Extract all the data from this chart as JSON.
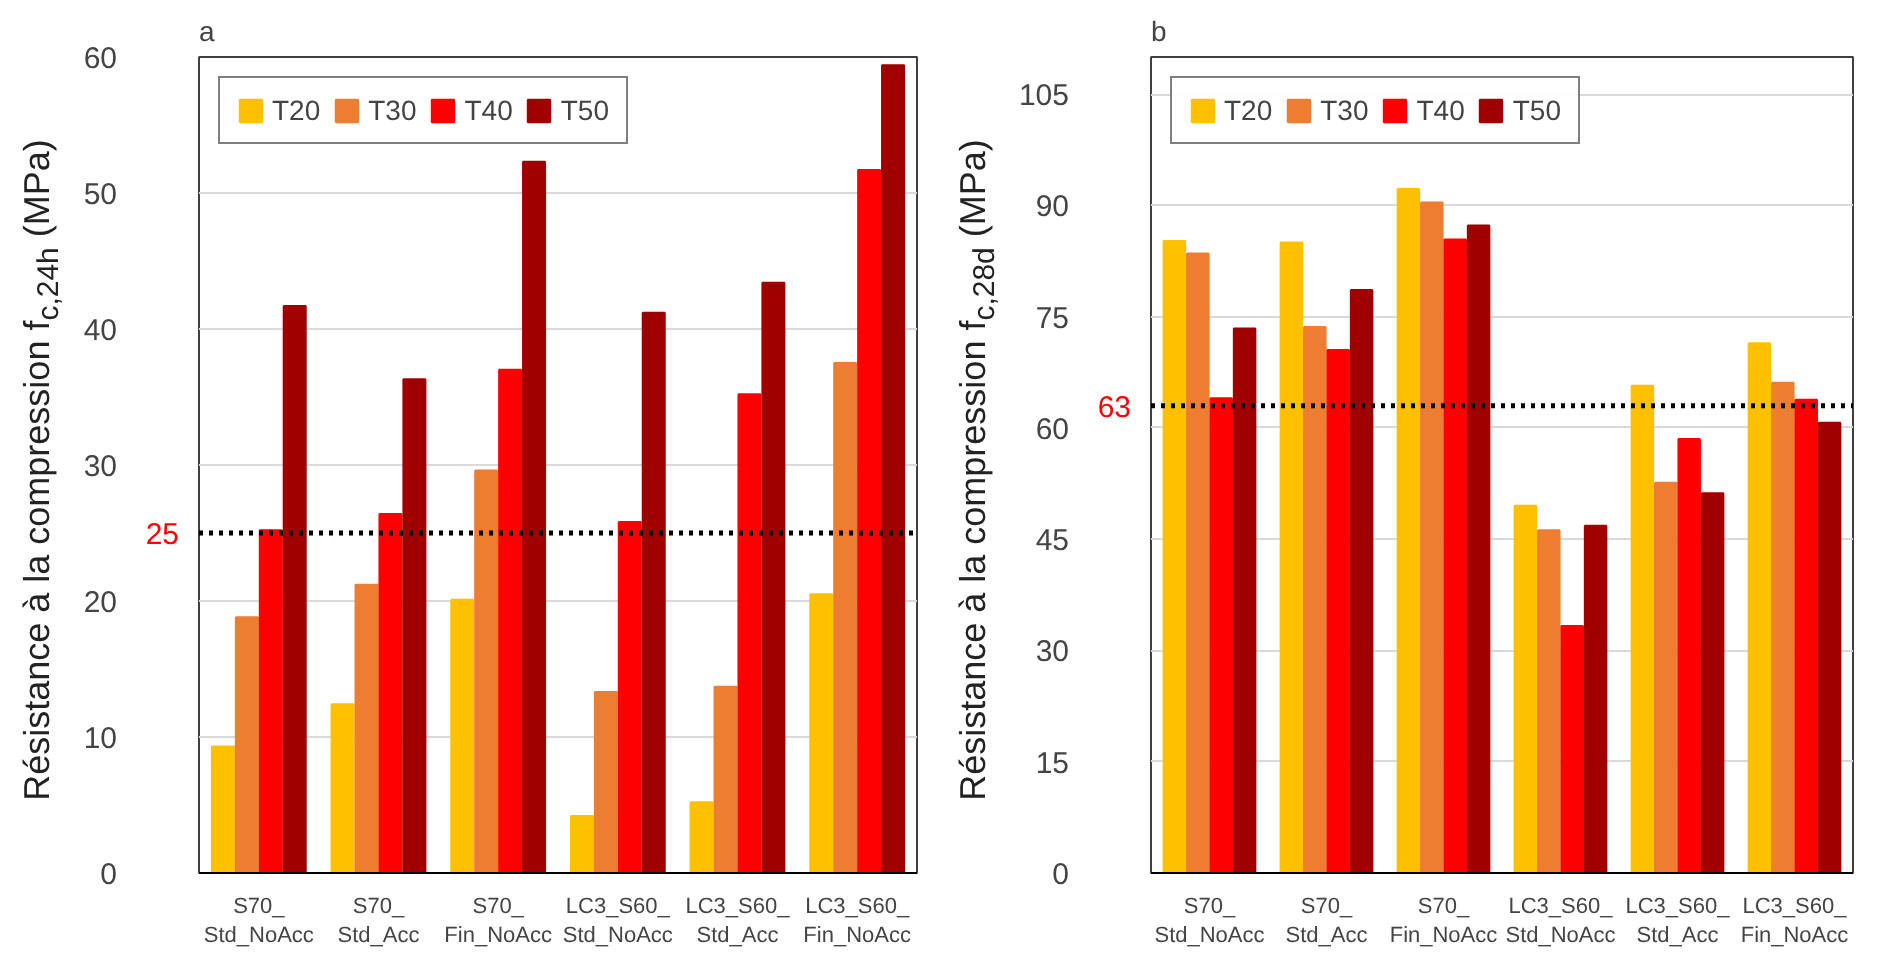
{
  "chart_data": [
    {
      "type": "bar",
      "title": "a",
      "ylabel": "Résistance à la compression f$_{c,24h}$ (MPa)",
      "categories": [
        "S70_\nStd_NoAcc",
        "S70_\nStd_Acc",
        "S70_\nFin_NoAcc",
        "LC3_S60_\nStd_NoAcc",
        "LC3_S60_\nStd_Acc",
        "LC3_S60_\nFin_NoAcc"
      ],
      "series": [
        {
          "name": "T20",
          "color": "#ffc000",
          "values": [
            9.3,
            12.4,
            20.1,
            4.2,
            5.2,
            20.5
          ]
        },
        {
          "name": "T30",
          "color": "#ed7d31",
          "values": [
            18.8,
            21.2,
            29.6,
            13.3,
            13.7,
            37.5
          ]
        },
        {
          "name": "T40",
          "color": "#ff0000",
          "values": [
            25.2,
            26.4,
            37.0,
            25.8,
            35.2,
            51.7
          ]
        },
        {
          "name": "T50",
          "color": "#a00000",
          "values": [
            41.7,
            36.3,
            52.3,
            41.2,
            43.4,
            59.4
          ]
        }
      ],
      "ylim": [
        0,
        60
      ],
      "yticks": [
        0,
        10,
        20,
        30,
        40,
        50,
        60
      ],
      "ref_lines": [
        {
          "axis": "y",
          "value": 25,
          "label": "25",
          "line_style": "dotted"
        }
      ],
      "grid": "y",
      "legend": "top left"
    },
    {
      "type": "bar",
      "title": "b",
      "ylabel": "Résistance à la compression f$_{c,28d}$ (MPa)",
      "categories": [
        "S70_\nStd_NoAcc",
        "S70_\nStd_Acc",
        "S70_\nFin_NoAcc",
        "LC3_S60_\nStd_NoAcc",
        "LC3_S60_\nStd_Acc",
        "LC3_S60_\nFin_NoAcc"
      ],
      "series": [
        {
          "name": "T20",
          "color": "#ffc000",
          "values": [
            85.2,
            85.0,
            92.2,
            49.5,
            65.7,
            71.4
          ]
        },
        {
          "name": "T30",
          "color": "#ed7d31",
          "values": [
            83.5,
            73.6,
            90.4,
            46.2,
            52.6,
            66.1
          ]
        },
        {
          "name": "T40",
          "color": "#ff0000",
          "values": [
            64.0,
            70.5,
            85.4,
            33.3,
            58.5,
            63.8
          ]
        },
        {
          "name": "T50",
          "color": "#a00000",
          "values": [
            73.4,
            78.6,
            87.3,
            46.8,
            51.2,
            60.7
          ]
        }
      ],
      "ylim": [
        0,
        110
      ],
      "yticks": [
        0,
        15,
        30,
        45,
        60,
        75,
        90,
        105
      ],
      "ref_lines": [
        {
          "axis": "y",
          "value": 63,
          "label": "63",
          "line_style": "dotted"
        }
      ],
      "grid": "y",
      "legend": "top left"
    }
  ]
}
